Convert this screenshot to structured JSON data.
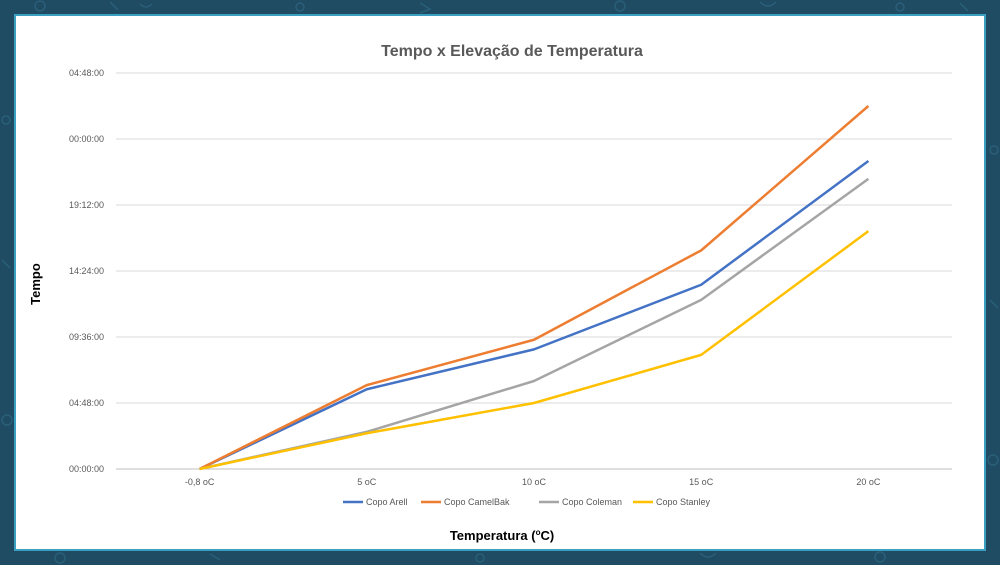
{
  "chart_data": {
    "type": "line",
    "title": "Tempo x Elevação de Temperatura",
    "xlabel": "Temperatura (",
    "xlabel_sup": "o",
    "xlabel_end": "C)",
    "ylabel": "Tempo",
    "categories": [
      "-0,8 oC",
      "5 oC",
      "10 oC",
      "15 oC",
      "20 oC"
    ],
    "y_ticks": [
      "00:00:00",
      "04:48:00",
      "09:36:00",
      "14:24:00",
      "19:12:00",
      "00:00:00",
      "04:48:00"
    ],
    "y_unit": "hours",
    "ylim": [
      0,
      28.8
    ],
    "grid": true,
    "legend_position": "bottom",
    "series": [
      {
        "name": "Copo Arell",
        "color": "#4472c4",
        "values": [
          0,
          5.8,
          8.7,
          13.4,
          22.4
        ]
      },
      {
        "name": "Copo CamelBak",
        "color": "#ed7d31",
        "values": [
          0,
          6.1,
          9.4,
          15.9,
          26.4
        ]
      },
      {
        "name": "Copo Coleman",
        "color": "#a5a5a5",
        "values": [
          0,
          2.7,
          6.4,
          12.3,
          21.1
        ]
      },
      {
        "name": "Copo Stanley",
        "color": "#ffc000",
        "values": [
          0,
          2.6,
          4.8,
          8.3,
          17.3
        ]
      }
    ]
  }
}
